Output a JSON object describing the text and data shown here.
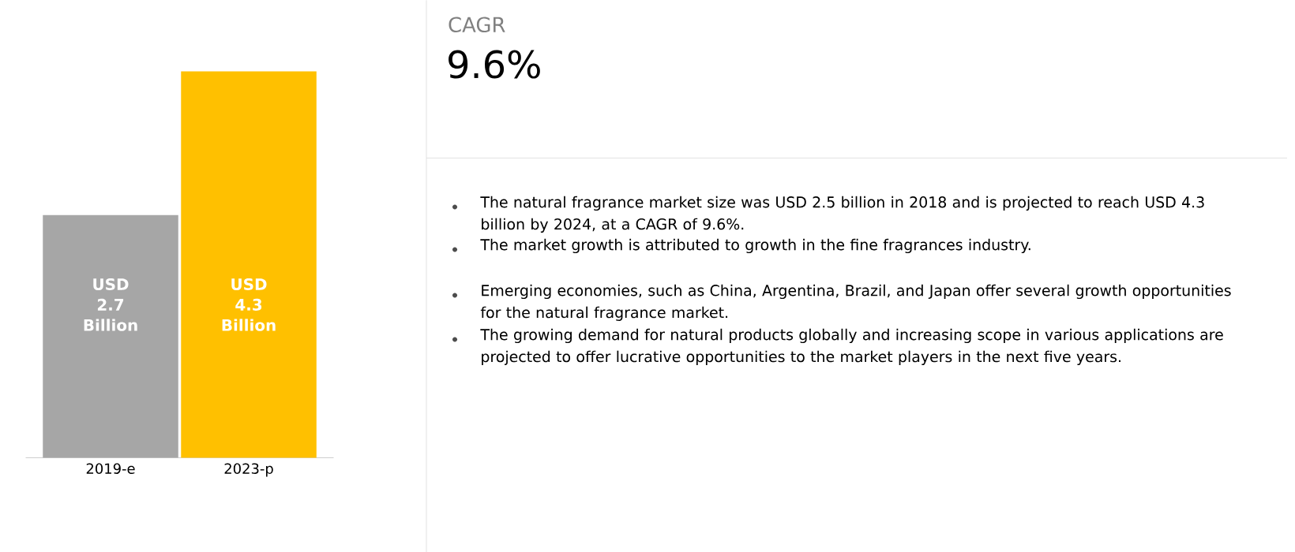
{
  "chart_data": {
    "type": "bar",
    "title": "CAGR",
    "subtitle": "9.6%",
    "categories": [
      "2019-e",
      "2023-p"
    ],
    "values": [
      2.7,
      4.3
    ],
    "colors": [
      "#a6a6a6",
      "#ffc000"
    ],
    "value_labels": [
      "USD 2.7 Billion",
      "USD 4.3 Billion"
    ],
    "annotations": [
      "The natural fragrance market size was USD 2.5 billion in 2018 and is projected to reach USD 4.3 billion by 2024, at a CAGR of 9.6%.",
      "The market growth is attributed to growth in the fine fragrances industry.",
      "Emerging economies, such as China, Argentina, Brazil, and Japan offer several growth opportunities for the natural fragrance market.",
      "The growing demand for natural products globally and increasing scope in various applications are projected to offer lucrative opportunities to the market players in the next five years."
    ]
  }
}
